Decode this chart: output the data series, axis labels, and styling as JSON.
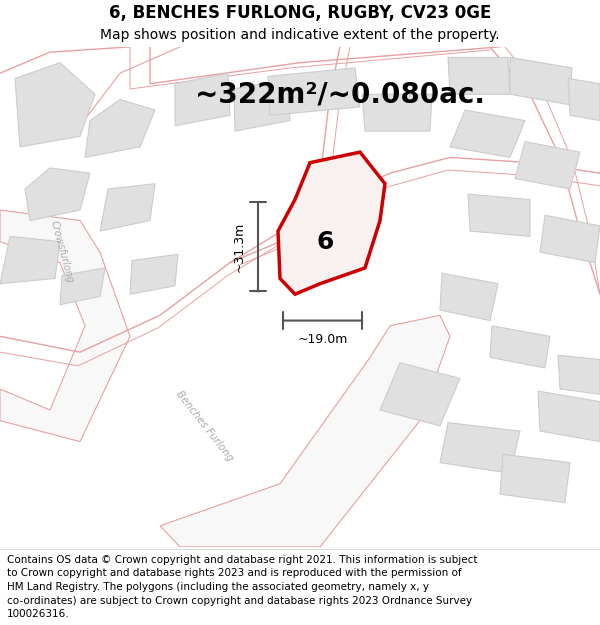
{
  "title": "6, BENCHES FURLONG, RUGBY, CV23 0GE",
  "subtitle": "Map shows position and indicative extent of the property.",
  "area_text": "~322m²/~0.080ac.",
  "dim_height": "~31.3m",
  "dim_width": "~19.0m",
  "property_number": "6",
  "footer_lines": [
    "Contains OS data © Crown copyright and database right 2021. This information is subject",
    "to Crown copyright and database rights 2023 and is reproduced with the permission of",
    "HM Land Registry. The polygons (including the associated geometry, namely x, y",
    "co-ordinates) are subject to Crown copyright and database rights 2023 Ordnance Survey",
    "100026316."
  ],
  "map_background": "#eeecec",
  "road_fill": "#f8f8f8",
  "road_outline_color": "#e8a0a0",
  "building_fill": "#e0e0e0",
  "building_edge": "#cccccc",
  "property_fill": "#f9f0f0",
  "property_edge": "#cc0000",
  "dim_line_color": "#555555",
  "street_label_color": "#aaaaaa",
  "title_fontsize": 12,
  "subtitle_fontsize": 10,
  "area_fontsize": 20,
  "footer_fontsize": 7.5
}
